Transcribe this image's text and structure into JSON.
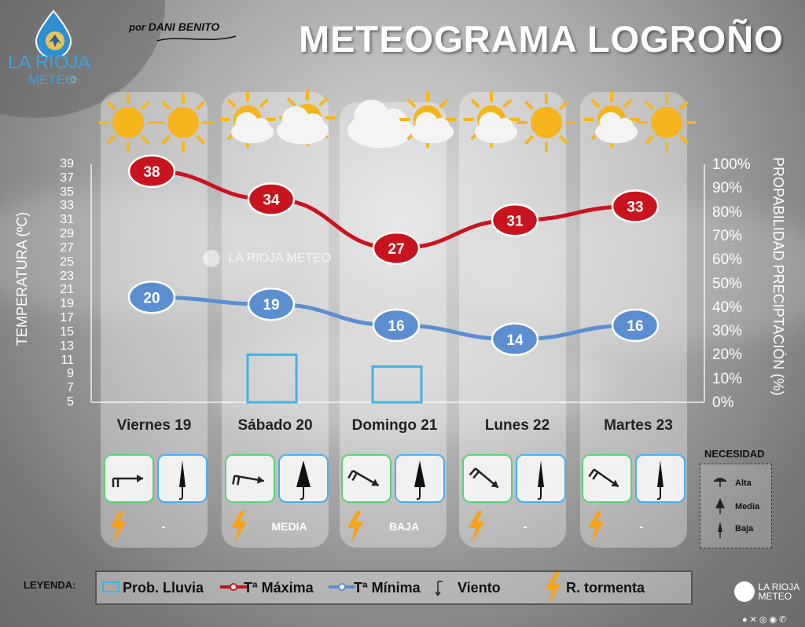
{
  "header": {
    "title": "METEOGRAMA LOGROÑO",
    "byline_prefix": "por",
    "byline_author": "DANI BENITO",
    "logo_line1": "LA RIOJA",
    "logo_line2": "METEO",
    "watermark": "LA RIOJA METEO"
  },
  "chart_data": {
    "type": "line",
    "categories": [
      "Viernes 19",
      "Sábado 20",
      "Domingo 21",
      "Lunes 22",
      "Martes 23"
    ],
    "ylabel": "TEMPERATURA (ºC)",
    "ylabel_right": "PROPABILIDAD PRECIPTACIÓN (%)",
    "ylim": [
      5,
      39
    ],
    "y_ticks": [
      "39",
      "37",
      "35",
      "33",
      "31",
      "29",
      "27",
      "25",
      "23",
      "21",
      "19",
      "17",
      "15",
      "13",
      "11",
      "9",
      "7",
      "5"
    ],
    "y2lim": [
      0,
      100
    ],
    "y2_ticks": [
      "100%",
      "90%",
      "80%",
      "70%",
      "60%",
      "50%",
      "40%",
      "30%",
      "20%",
      "10%",
      "0%"
    ],
    "series": [
      {
        "name": "Tª Máxima",
        "values": [
          38,
          34,
          27,
          31,
          33
        ],
        "color": "#c8141e",
        "labels": [
          "38",
          "34",
          "27",
          "31",
          "33"
        ]
      },
      {
        "name": "Tª Mínima",
        "values": [
          20,
          19,
          16,
          14,
          16
        ],
        "color": "#5b8ed0",
        "labels": [
          "20",
          "19",
          "16",
          "14",
          "16"
        ]
      },
      {
        "name": "Prob. Lluvia",
        "type": "bar",
        "axis": "right",
        "values": [
          0,
          20,
          15,
          0,
          0
        ],
        "color": "#3fb3e6"
      }
    ],
    "grid": false
  },
  "days": [
    {
      "label": "Viernes 19",
      "necesidad": "-",
      "sky": [
        "sun-icon",
        "sun-icon"
      ]
    },
    {
      "label": "Sábado 20",
      "necesidad": "MEDIA",
      "sky": [
        "partly-cloudy-icon",
        "storm-cloud-icon"
      ]
    },
    {
      "label": "Domingo 21",
      "necesidad": "BAJA",
      "sky": [
        "cloud-icon",
        "partly-cloudy-icon"
      ]
    },
    {
      "label": "Lunes 22",
      "necesidad": "-",
      "sky": [
        "partly-cloudy-icon",
        "sun-icon"
      ]
    },
    {
      "label": "Martes 23",
      "necesidad": "-",
      "sky": [
        "partly-cloudy-icon",
        "sun-icon"
      ]
    }
  ],
  "necesidad_panel": {
    "title": "NECESIDAD",
    "alta": "Alta",
    "media": "Media",
    "baja": "Baja"
  },
  "legend": {
    "title": "LEYENDA:",
    "prob_lluvia": "Prob. Lluvia",
    "t_max": "Tª Máxima",
    "t_min": "Tª Mínima",
    "viento": "Viento",
    "tormenta": "R. tormenta"
  },
  "colors": {
    "max": "#c8141e",
    "min": "#5b8ed0",
    "rain": "#3fb3e6",
    "wind_box": "#59d274",
    "umbrella_box": "#47aef0",
    "lightning": "#f6a21a"
  }
}
